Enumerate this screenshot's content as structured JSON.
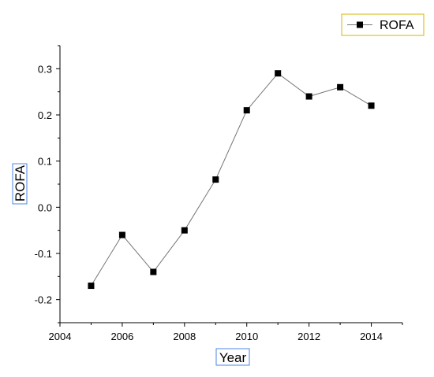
{
  "chart_data": {
    "type": "line",
    "x": [
      2005,
      2006,
      2007,
      2008,
      2009,
      2010,
      2011,
      2012,
      2013,
      2014
    ],
    "series": [
      {
        "name": "ROFA",
        "values": [
          -0.17,
          -0.06,
          -0.14,
          -0.05,
          0.06,
          0.21,
          0.29,
          0.24,
          0.26,
          0.22
        ]
      }
    ],
    "xlabel": "Year",
    "ylabel": "ROFA",
    "xlim": [
      2004,
      2015
    ],
    "ylim": [
      -0.25,
      0.35
    ],
    "xticks": [
      "2004",
      "2006",
      "2008",
      "2010",
      "2012",
      "2014"
    ],
    "yticks": [
      "-0.2",
      "-0.1",
      "0.0",
      "0.1",
      "0.2",
      "0.3"
    ],
    "grid": false,
    "legend_position": "top-right",
    "marker": "square",
    "colors": {
      "line": "#777777",
      "marker": "#000000",
      "axis": "#000000",
      "highlight_box": "#4a86e8"
    }
  }
}
